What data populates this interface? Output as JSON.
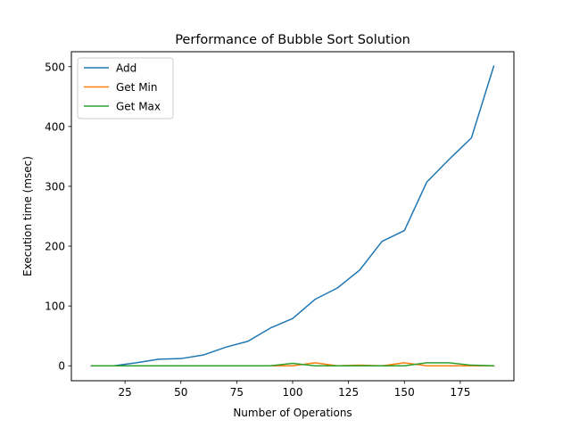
{
  "chart_data": {
    "type": "line",
    "title": "Performance of Bubble Sort Solution",
    "xlabel": "Number of Operations",
    "ylabel": "Execution time (msec)",
    "xlim": [
      1,
      199
    ],
    "ylim": [
      -25,
      525
    ],
    "xticks": [
      25,
      50,
      75,
      100,
      125,
      150,
      175
    ],
    "yticks": [
      0,
      100,
      200,
      300,
      400,
      500
    ],
    "legend_position": "upper-left",
    "grid": false,
    "x": [
      10,
      20,
      30,
      40,
      50,
      60,
      70,
      80,
      90,
      100,
      110,
      120,
      130,
      140,
      150,
      160,
      170,
      180,
      190
    ],
    "series": [
      {
        "name": "Add",
        "color": "#1f77b4",
        "values": [
          0,
          0,
          5,
          11,
          12,
          18,
          31,
          41,
          63,
          79,
          111,
          130,
          160,
          208,
          226,
          307,
          345,
          381,
          501
        ]
      },
      {
        "name": "Get Min",
        "color": "#ff7f0e",
        "values": [
          0,
          0,
          0,
          0,
          0,
          0,
          0,
          0,
          0,
          0,
          5,
          0,
          1,
          0,
          5,
          0,
          0,
          0,
          0
        ]
      },
      {
        "name": "Get Max",
        "color": "#2ca02c",
        "values": [
          0,
          0,
          0,
          0,
          0,
          0,
          0,
          0,
          0,
          4,
          0,
          0,
          0,
          0,
          0,
          5,
          5,
          1,
          0
        ]
      }
    ]
  }
}
